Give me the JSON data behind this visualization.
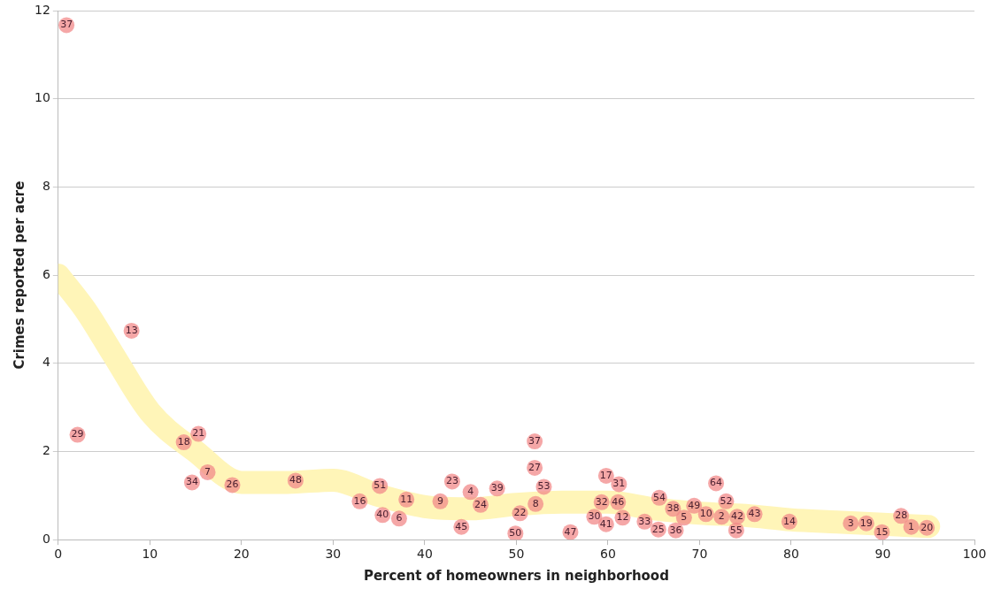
{
  "chart_data": {
    "type": "scatter",
    "xlabel": "Percent of homeowners in neighborhood",
    "ylabel": "Crimes reported per acre",
    "xlim": [
      0,
      100
    ],
    "xticks": [
      0,
      10,
      20,
      30,
      40,
      50,
      60,
      70,
      80,
      90,
      100
    ],
    "ylim": [
      0,
      12
    ],
    "yticks": [
      0,
      2,
      4,
      6,
      8,
      10,
      12
    ],
    "grid": "y",
    "legend": false,
    "marker": "circle",
    "series": [
      {
        "type": "line",
        "marker": "none",
        "color": "#fff5b8",
        "x": [
          0,
          3,
          6,
          10,
          15,
          20,
          25,
          30,
          35,
          40,
          45,
          50,
          55,
          60,
          65,
          70,
          75,
          80,
          85,
          90,
          95
        ],
        "values": [
          6.0,
          5.2,
          4.2,
          2.9,
          2.0,
          1.3,
          1.3,
          1.35,
          1.0,
          0.75,
          0.7,
          0.8,
          0.85,
          0.85,
          0.7,
          0.6,
          0.55,
          0.45,
          0.4,
          0.35,
          0.3
        ]
      },
      {
        "color": "#f28a8a",
        "x": [
          0.9,
          2.1,
          8.0,
          13.7,
          15.3,
          14.6,
          16.3,
          19.0,
          25.9,
          32.9,
          35.1,
          35.4,
          37.2,
          38.0,
          41.7,
          43.0,
          44.0,
          45.0,
          46.1,
          47.9,
          50.4,
          49.9,
          52.0,
          52.0,
          52.1,
          53.0,
          55.9,
          59.8,
          61.2,
          59.3,
          61.1,
          58.5,
          59.8,
          61.6,
          64.0,
          65.5,
          65.6,
          67.4,
          67.1,
          68.3,
          69.4,
          70.7,
          72.4,
          71.8,
          72.9,
          74.1,
          74.0,
          76.0,
          79.8,
          86.5,
          88.2,
          89.9,
          92.0,
          93.1,
          94.8
        ],
        "values": [
          11.67,
          2.38,
          4.74,
          2.21,
          2.4,
          1.3,
          1.53,
          1.24,
          1.34,
          0.87,
          1.22,
          0.56,
          0.48,
          0.91,
          0.87,
          1.32,
          0.29,
          1.08,
          0.79,
          1.16,
          0.6,
          0.14,
          2.23,
          1.63,
          0.81,
          1.2,
          0.17,
          1.45,
          1.26,
          0.85,
          0.85,
          0.52,
          0.35,
          0.5,
          0.41,
          0.23,
          0.95,
          0.21,
          0.7,
          0.5,
          0.77,
          0.58,
          0.52,
          1.28,
          0.87,
          0.52,
          0.21,
          0.58,
          0.41,
          0.37,
          0.37,
          0.17,
          0.54,
          0.29,
          0.27
        ]
      }
    ],
    "annotations": [
      {
        "text": "37",
        "x": 0.9,
        "y": 11.67
      },
      {
        "text": "29",
        "x": 2.1,
        "y": 2.38
      },
      {
        "text": "13",
        "x": 8.0,
        "y": 4.74
      },
      {
        "text": "18",
        "x": 13.7,
        "y": 2.21
      },
      {
        "text": "21",
        "x": 15.3,
        "y": 2.4
      },
      {
        "text": "34",
        "x": 14.6,
        "y": 1.3
      },
      {
        "text": "7",
        "x": 16.3,
        "y": 1.53
      },
      {
        "text": "26",
        "x": 19.0,
        "y": 1.24
      },
      {
        "text": "48",
        "x": 25.9,
        "y": 1.34
      },
      {
        "text": "16",
        "x": 32.9,
        "y": 0.87
      },
      {
        "text": "51",
        "x": 35.1,
        "y": 1.22
      },
      {
        "text": "40",
        "x": 35.4,
        "y": 0.56
      },
      {
        "text": "6",
        "x": 37.2,
        "y": 0.48
      },
      {
        "text": "11",
        "x": 38.0,
        "y": 0.91
      },
      {
        "text": "9",
        "x": 41.7,
        "y": 0.87
      },
      {
        "text": "23",
        "x": 43.0,
        "y": 1.32
      },
      {
        "text": "45",
        "x": 44.0,
        "y": 0.29
      },
      {
        "text": "4",
        "x": 45.0,
        "y": 1.08
      },
      {
        "text": "24",
        "x": 46.1,
        "y": 0.79
      },
      {
        "text": "39",
        "x": 47.9,
        "y": 1.16
      },
      {
        "text": "22",
        "x": 50.4,
        "y": 0.6
      },
      {
        "text": "50",
        "x": 49.9,
        "y": 0.14
      },
      {
        "text": "37",
        "x": 52.0,
        "y": 2.23
      },
      {
        "text": "27",
        "x": 52.0,
        "y": 1.63
      },
      {
        "text": "8",
        "x": 52.1,
        "y": 0.81
      },
      {
        "text": "53",
        "x": 53.0,
        "y": 1.2
      },
      {
        "text": "47",
        "x": 55.9,
        "y": 0.17
      },
      {
        "text": "17",
        "x": 59.8,
        "y": 1.45
      },
      {
        "text": "31",
        "x": 61.2,
        "y": 1.26
      },
      {
        "text": "32",
        "x": 59.3,
        "y": 0.85
      },
      {
        "text": "46",
        "x": 61.1,
        "y": 0.85
      },
      {
        "text": "30",
        "x": 58.5,
        "y": 0.52
      },
      {
        "text": "41",
        "x": 59.8,
        "y": 0.35
      },
      {
        "text": "12",
        "x": 61.6,
        "y": 0.5
      },
      {
        "text": "33",
        "x": 64.0,
        "y": 0.41
      },
      {
        "text": "25",
        "x": 65.5,
        "y": 0.23
      },
      {
        "text": "54",
        "x": 65.6,
        "y": 0.95
      },
      {
        "text": "36",
        "x": 67.4,
        "y": 0.21
      },
      {
        "text": "38",
        "x": 67.1,
        "y": 0.7
      },
      {
        "text": "5",
        "x": 68.3,
        "y": 0.5
      },
      {
        "text": "49",
        "x": 69.4,
        "y": 0.77
      },
      {
        "text": "10",
        "x": 70.7,
        "y": 0.58
      },
      {
        "text": "2",
        "x": 72.4,
        "y": 0.52
      },
      {
        "text": "64",
        "x": 71.8,
        "y": 1.28
      },
      {
        "text": "52",
        "x": 72.9,
        "y": 0.87
      },
      {
        "text": "42",
        "x": 74.1,
        "y": 0.52
      },
      {
        "text": "55",
        "x": 74.0,
        "y": 0.21
      },
      {
        "text": "43",
        "x": 76.0,
        "y": 0.58
      },
      {
        "text": "14",
        "x": 79.8,
        "y": 0.41
      },
      {
        "text": "3",
        "x": 86.5,
        "y": 0.37
      },
      {
        "text": "19",
        "x": 88.2,
        "y": 0.37
      },
      {
        "text": "15",
        "x": 89.9,
        "y": 0.17
      },
      {
        "text": "28",
        "x": 92.0,
        "y": 0.54
      },
      {
        "text": "1",
        "x": 93.1,
        "y": 0.29
      },
      {
        "text": "20",
        "x": 94.8,
        "y": 0.27
      }
    ]
  }
}
